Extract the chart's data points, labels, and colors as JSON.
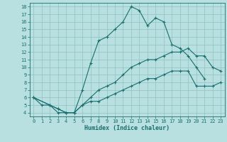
{
  "title": "",
  "xlabel": "Humidex (Indice chaleur)",
  "background_color": "#b8e0e0",
  "grid_color": "#90c0c0",
  "line_color": "#1a6e6e",
  "xlim": [
    -0.5,
    23.5
  ],
  "ylim": [
    3.5,
    18.5
  ],
  "xticks": [
    0,
    1,
    2,
    3,
    4,
    5,
    6,
    7,
    8,
    9,
    10,
    11,
    12,
    13,
    14,
    15,
    16,
    17,
    18,
    19,
    20,
    21,
    22,
    23
  ],
  "yticks": [
    4,
    5,
    6,
    7,
    8,
    9,
    10,
    11,
    12,
    13,
    14,
    15,
    16,
    17,
    18
  ],
  "line1_x": [
    0,
    1,
    2,
    3,
    4,
    5,
    6,
    7,
    8,
    9,
    10,
    11,
    12,
    13,
    14,
    15,
    16,
    17,
    18,
    19,
    20,
    21
  ],
  "line1_y": [
    6,
    5,
    5,
    4,
    4,
    4,
    7,
    10.5,
    13.5,
    14,
    15,
    16,
    18,
    17.5,
    15.5,
    16.5,
    16,
    13,
    12.5,
    11.5,
    10,
    8.5
  ],
  "line2_x": [
    0,
    2,
    3,
    4,
    5,
    6,
    7,
    8,
    9,
    10,
    11,
    12,
    13,
    14,
    15,
    16,
    17,
    18,
    19,
    20,
    21,
    22,
    23
  ],
  "line2_y": [
    6,
    5,
    4.5,
    4,
    4,
    5,
    6,
    7,
    7.5,
    8,
    9,
    10,
    10.5,
    11,
    11,
    11.5,
    12,
    12,
    12.5,
    11.5,
    11.5,
    10,
    9.5
  ],
  "line3_x": [
    0,
    2,
    3,
    4,
    5,
    6,
    7,
    8,
    9,
    10,
    11,
    12,
    13,
    14,
    15,
    16,
    17,
    18,
    19,
    20,
    21,
    22,
    23
  ],
  "line3_y": [
    6,
    5,
    4.5,
    4,
    4,
    5,
    5.5,
    5.5,
    6,
    6.5,
    7,
    7.5,
    8,
    8.5,
    8.5,
    9,
    9.5,
    9.5,
    9.5,
    7.5,
    7.5,
    7.5,
    8
  ]
}
